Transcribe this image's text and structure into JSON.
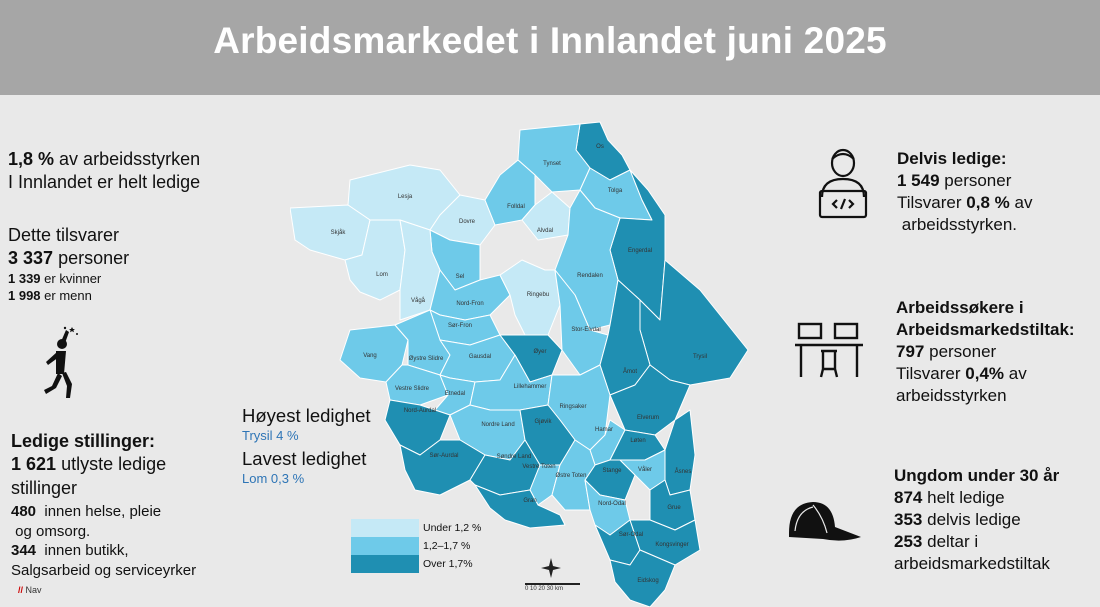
{
  "title": "Arbeidsmarkedet i Innlandet juni 2025",
  "left": {
    "rate_value": "1,8 %",
    "rate_text_1": "av arbeidsstyrken",
    "rate_text_2": "I Innlandet er helt ledige",
    "equiv_label": "Dette tilsvarer",
    "persons_value": "3 337",
    "persons_label": "personer",
    "women_value": "1 339",
    "women_label": "er kvinner",
    "men_value": "1 998",
    "men_label": "er menn",
    "vac_title": "Ledige stillinger:",
    "vac_value": "1 621",
    "vac_text_1": "utlyste ledige",
    "vac_text_2": "stillinger",
    "health_value": "480",
    "health_text_1": "innen helse, pleie",
    "health_text_2": "og omsorg.",
    "shop_value": "344",
    "shop_text_1": "innen butikk,",
    "shop_text_2": "Salgsarbeid og serviceyrker"
  },
  "middle": {
    "highest_label": "Høyest ledighet",
    "highest_value": "Trysil 4 %",
    "lowest_label": "Lavest ledighet",
    "lowest_value": "Lom 0,3 %"
  },
  "legend": [
    {
      "label": "Under 1,2 %",
      "color": "#c5e9f6"
    },
    {
      "label": "1,2–1,7 %",
      "color": "#6ecae9"
    },
    {
      "label": "Over 1,7%",
      "color": "#1f8fb2"
    }
  ],
  "scale_bar": "0    10    20    30 km",
  "logo": "Nav",
  "right": {
    "partial_title": "Delvis ledige:",
    "partial_value": "1 549",
    "partial_label": "personer",
    "partial_eq_1": "Tilsvarer",
    "partial_pct": "0,8 %",
    "partial_eq_2": "av",
    "partial_eq_3": "arbeidsstyrken.",
    "measures_title_1": "Arbeidssøkere i",
    "measures_title_2": "Arbeidsmarkedstiltak:",
    "measures_value": "797",
    "measures_label": "personer",
    "measures_eq_1": "Tilsvarer",
    "measures_pct": "0,4%",
    "measures_eq_2": "av",
    "measures_eq_3": "arbeidsstyrken",
    "youth_title": "Ungdom under 30 år",
    "youth_full_value": "874",
    "youth_full_label": "helt ledige",
    "youth_partial_value": "353",
    "youth_partial_label": "delvis ledige",
    "youth_measures_value": "253",
    "youth_measures_label": "deltar i",
    "youth_measures_label_2": "arbeidsmarkedstiltak"
  },
  "municipalities": [
    {
      "name": "Os",
      "level": "high"
    },
    {
      "name": "Tynset",
      "level": "mid"
    },
    {
      "name": "Tolga",
      "level": "mid"
    },
    {
      "name": "Engerdal",
      "level": "high"
    },
    {
      "name": "Lesja",
      "level": "low"
    },
    {
      "name": "Dovre",
      "level": "low"
    },
    {
      "name": "Folldal",
      "level": "mid"
    },
    {
      "name": "Alvdal",
      "level": "low"
    },
    {
      "name": "Skjåk",
      "level": "low"
    },
    {
      "name": "Lom",
      "level": "low"
    },
    {
      "name": "Sel",
      "level": "mid"
    },
    {
      "name": "Rendalen",
      "level": "mid"
    },
    {
      "name": "Vågå",
      "level": "low"
    },
    {
      "name": "Nord-Fron",
      "level": "mid"
    },
    {
      "name": "Ringebu",
      "level": "low"
    },
    {
      "name": "Sør-Fron",
      "level": "mid"
    },
    {
      "name": "Stor-Elvdal",
      "level": "mid"
    },
    {
      "name": "Vang",
      "level": "mid"
    },
    {
      "name": "Øystre Slidre",
      "level": "mid"
    },
    {
      "name": "Gausdal",
      "level": "mid"
    },
    {
      "name": "Øyer",
      "level": "high"
    },
    {
      "name": "Trysil",
      "level": "high"
    },
    {
      "name": "Vestre Slidre",
      "level": "mid"
    },
    {
      "name": "Åmot",
      "level": "high"
    },
    {
      "name": "Etnedal",
      "level": "mid"
    },
    {
      "name": "Lillehammer",
      "level": "mid"
    },
    {
      "name": "Nord-Aurdal",
      "level": "high"
    },
    {
      "name": "Ringsaker",
      "level": "mid"
    },
    {
      "name": "Elverum",
      "level": "high"
    },
    {
      "name": "Nordre Land",
      "level": "mid"
    },
    {
      "name": "Gjøvik",
      "level": "high"
    },
    {
      "name": "Hamar",
      "level": "mid"
    },
    {
      "name": "Løten",
      "level": "high"
    },
    {
      "name": "Sør-Aurdal",
      "level": "high"
    },
    {
      "name": "Søndre Land",
      "level": "high"
    },
    {
      "name": "Vestre Toten",
      "level": "mid"
    },
    {
      "name": "Stange",
      "level": "high"
    },
    {
      "name": "Våler",
      "level": "mid"
    },
    {
      "name": "Åsnes",
      "level": "high"
    },
    {
      "name": "Østre Toten",
      "level": "mid"
    },
    {
      "name": "Gran",
      "level": "high"
    },
    {
      "name": "Nord-Odal",
      "level": "mid"
    },
    {
      "name": "Grue",
      "level": "high"
    },
    {
      "name": "Sør-Odal",
      "level": "high"
    },
    {
      "name": "Kongsvinger",
      "level": "high"
    },
    {
      "name": "Eidskog",
      "level": "high"
    }
  ]
}
